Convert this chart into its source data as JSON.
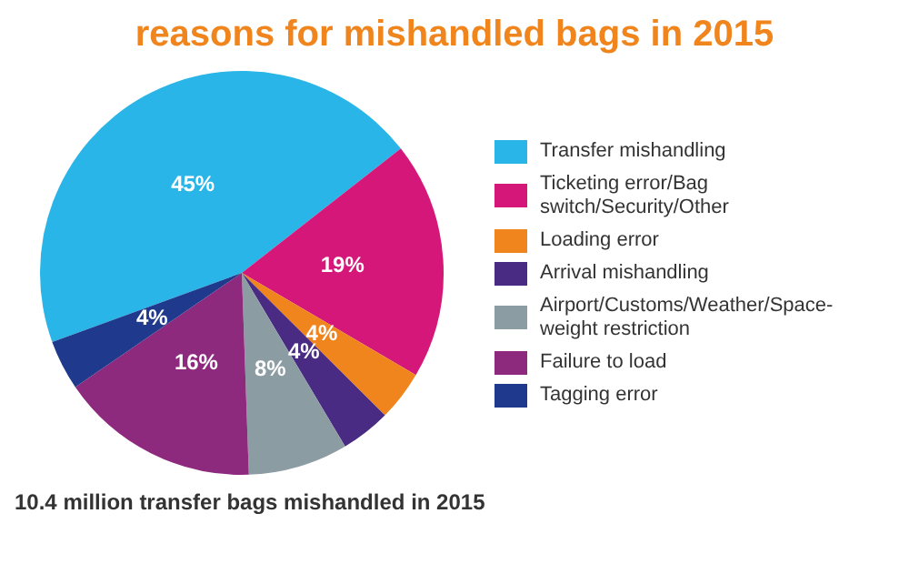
{
  "chart_data": {
    "type": "pie",
    "title": "reasons for mishandled bags in 2015",
    "categories": [
      "Transfer mishandling",
      "Ticketing error/Bag switch/Security/Other",
      "Loading error",
      "Arrival mishandling",
      "Airport/Customs/Weather/Space-weight restriction",
      "Failure to load",
      "Tagging error"
    ],
    "values": [
      45,
      19,
      4,
      4,
      8,
      16,
      4
    ],
    "value_labels": [
      "45%",
      "19%",
      "4%",
      "4%",
      "8%",
      "16%",
      "4%"
    ],
    "colors": [
      "#29b5e8",
      "#d6177a",
      "#f0851e",
      "#4a2b83",
      "#8c9ca3",
      "#8e2a7e",
      "#1f3a8c"
    ],
    "legend": "right",
    "annotations": [
      "10.4 million transfer bags mishandled in 2015"
    ]
  }
}
